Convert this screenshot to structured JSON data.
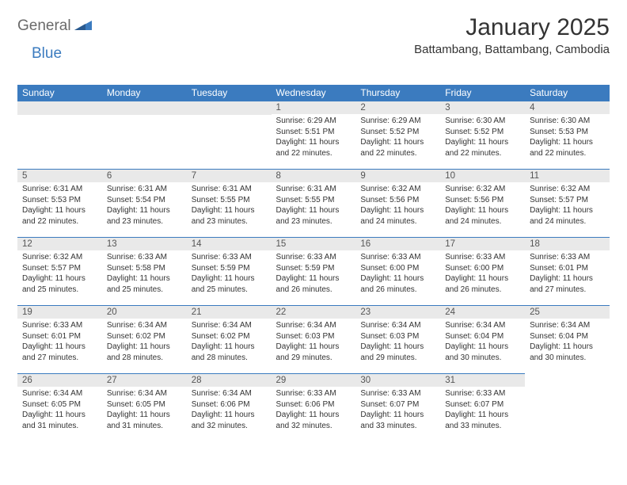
{
  "brand": {
    "part1": "General",
    "part2": "Blue"
  },
  "title": "January 2025",
  "location": "Battambang, Battambang, Cambodia",
  "colors": {
    "header_bg": "#3b7bbf",
    "header_text": "#ffffff",
    "daynum_bg": "#e9e9e9",
    "border": "#3b7bbf",
    "text": "#333333",
    "logo_gray": "#6a6a6a",
    "logo_blue": "#3b7bbf",
    "page_bg": "#ffffff"
  },
  "weekdays": [
    "Sunday",
    "Monday",
    "Tuesday",
    "Wednesday",
    "Thursday",
    "Friday",
    "Saturday"
  ],
  "weeks": [
    [
      null,
      null,
      null,
      {
        "n": "1",
        "sr": "Sunrise: 6:29 AM",
        "ss": "Sunset: 5:51 PM",
        "d1": "Daylight: 11 hours",
        "d2": "and 22 minutes."
      },
      {
        "n": "2",
        "sr": "Sunrise: 6:29 AM",
        "ss": "Sunset: 5:52 PM",
        "d1": "Daylight: 11 hours",
        "d2": "and 22 minutes."
      },
      {
        "n": "3",
        "sr": "Sunrise: 6:30 AM",
        "ss": "Sunset: 5:52 PM",
        "d1": "Daylight: 11 hours",
        "d2": "and 22 minutes."
      },
      {
        "n": "4",
        "sr": "Sunrise: 6:30 AM",
        "ss": "Sunset: 5:53 PM",
        "d1": "Daylight: 11 hours",
        "d2": "and 22 minutes."
      }
    ],
    [
      {
        "n": "5",
        "sr": "Sunrise: 6:31 AM",
        "ss": "Sunset: 5:53 PM",
        "d1": "Daylight: 11 hours",
        "d2": "and 22 minutes."
      },
      {
        "n": "6",
        "sr": "Sunrise: 6:31 AM",
        "ss": "Sunset: 5:54 PM",
        "d1": "Daylight: 11 hours",
        "d2": "and 23 minutes."
      },
      {
        "n": "7",
        "sr": "Sunrise: 6:31 AM",
        "ss": "Sunset: 5:55 PM",
        "d1": "Daylight: 11 hours",
        "d2": "and 23 minutes."
      },
      {
        "n": "8",
        "sr": "Sunrise: 6:31 AM",
        "ss": "Sunset: 5:55 PM",
        "d1": "Daylight: 11 hours",
        "d2": "and 23 minutes."
      },
      {
        "n": "9",
        "sr": "Sunrise: 6:32 AM",
        "ss": "Sunset: 5:56 PM",
        "d1": "Daylight: 11 hours",
        "d2": "and 24 minutes."
      },
      {
        "n": "10",
        "sr": "Sunrise: 6:32 AM",
        "ss": "Sunset: 5:56 PM",
        "d1": "Daylight: 11 hours",
        "d2": "and 24 minutes."
      },
      {
        "n": "11",
        "sr": "Sunrise: 6:32 AM",
        "ss": "Sunset: 5:57 PM",
        "d1": "Daylight: 11 hours",
        "d2": "and 24 minutes."
      }
    ],
    [
      {
        "n": "12",
        "sr": "Sunrise: 6:32 AM",
        "ss": "Sunset: 5:57 PM",
        "d1": "Daylight: 11 hours",
        "d2": "and 25 minutes."
      },
      {
        "n": "13",
        "sr": "Sunrise: 6:33 AM",
        "ss": "Sunset: 5:58 PM",
        "d1": "Daylight: 11 hours",
        "d2": "and 25 minutes."
      },
      {
        "n": "14",
        "sr": "Sunrise: 6:33 AM",
        "ss": "Sunset: 5:59 PM",
        "d1": "Daylight: 11 hours",
        "d2": "and 25 minutes."
      },
      {
        "n": "15",
        "sr": "Sunrise: 6:33 AM",
        "ss": "Sunset: 5:59 PM",
        "d1": "Daylight: 11 hours",
        "d2": "and 26 minutes."
      },
      {
        "n": "16",
        "sr": "Sunrise: 6:33 AM",
        "ss": "Sunset: 6:00 PM",
        "d1": "Daylight: 11 hours",
        "d2": "and 26 minutes."
      },
      {
        "n": "17",
        "sr": "Sunrise: 6:33 AM",
        "ss": "Sunset: 6:00 PM",
        "d1": "Daylight: 11 hours",
        "d2": "and 26 minutes."
      },
      {
        "n": "18",
        "sr": "Sunrise: 6:33 AM",
        "ss": "Sunset: 6:01 PM",
        "d1": "Daylight: 11 hours",
        "d2": "and 27 minutes."
      }
    ],
    [
      {
        "n": "19",
        "sr": "Sunrise: 6:33 AM",
        "ss": "Sunset: 6:01 PM",
        "d1": "Daylight: 11 hours",
        "d2": "and 27 minutes."
      },
      {
        "n": "20",
        "sr": "Sunrise: 6:34 AM",
        "ss": "Sunset: 6:02 PM",
        "d1": "Daylight: 11 hours",
        "d2": "and 28 minutes."
      },
      {
        "n": "21",
        "sr": "Sunrise: 6:34 AM",
        "ss": "Sunset: 6:02 PM",
        "d1": "Daylight: 11 hours",
        "d2": "and 28 minutes."
      },
      {
        "n": "22",
        "sr": "Sunrise: 6:34 AM",
        "ss": "Sunset: 6:03 PM",
        "d1": "Daylight: 11 hours",
        "d2": "and 29 minutes."
      },
      {
        "n": "23",
        "sr": "Sunrise: 6:34 AM",
        "ss": "Sunset: 6:03 PM",
        "d1": "Daylight: 11 hours",
        "d2": "and 29 minutes."
      },
      {
        "n": "24",
        "sr": "Sunrise: 6:34 AM",
        "ss": "Sunset: 6:04 PM",
        "d1": "Daylight: 11 hours",
        "d2": "and 30 minutes."
      },
      {
        "n": "25",
        "sr": "Sunrise: 6:34 AM",
        "ss": "Sunset: 6:04 PM",
        "d1": "Daylight: 11 hours",
        "d2": "and 30 minutes."
      }
    ],
    [
      {
        "n": "26",
        "sr": "Sunrise: 6:34 AM",
        "ss": "Sunset: 6:05 PM",
        "d1": "Daylight: 11 hours",
        "d2": "and 31 minutes."
      },
      {
        "n": "27",
        "sr": "Sunrise: 6:34 AM",
        "ss": "Sunset: 6:05 PM",
        "d1": "Daylight: 11 hours",
        "d2": "and 31 minutes."
      },
      {
        "n": "28",
        "sr": "Sunrise: 6:34 AM",
        "ss": "Sunset: 6:06 PM",
        "d1": "Daylight: 11 hours",
        "d2": "and 32 minutes."
      },
      {
        "n": "29",
        "sr": "Sunrise: 6:33 AM",
        "ss": "Sunset: 6:06 PM",
        "d1": "Daylight: 11 hours",
        "d2": "and 32 minutes."
      },
      {
        "n": "30",
        "sr": "Sunrise: 6:33 AM",
        "ss": "Sunset: 6:07 PM",
        "d1": "Daylight: 11 hours",
        "d2": "and 33 minutes."
      },
      {
        "n": "31",
        "sr": "Sunrise: 6:33 AM",
        "ss": "Sunset: 6:07 PM",
        "d1": "Daylight: 11 hours",
        "d2": "and 33 minutes."
      },
      null
    ]
  ]
}
